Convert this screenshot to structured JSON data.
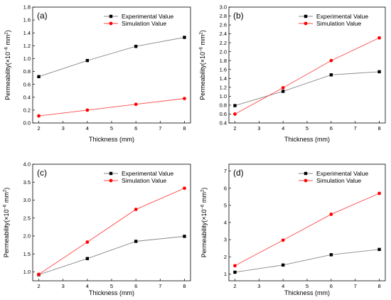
{
  "colors": {
    "experimental": "#000000",
    "simulation": "#ff0000",
    "experimental_line": "#888888",
    "simulation_line": "#ff4a4a"
  },
  "chart_data": [
    {
      "type": "line",
      "panel_label": "(a)",
      "xlabel": "Thickness (mm)",
      "ylabel": {
        "main": "Permeability(×10",
        "exp": "−6",
        "unit": " mm",
        "unit_exp": "2",
        "close": ")"
      },
      "xlim": [
        1.75,
        8.25
      ],
      "ylim": [
        0.0,
        1.8
      ],
      "xticks": [
        "2",
        "3",
        "4",
        "5",
        "6",
        "7",
        "8"
      ],
      "yticks": [
        "0.0",
        "0.2",
        "0.4",
        "0.6",
        "0.8",
        "1.0",
        "1.2",
        "1.4",
        "1.6",
        "1.8"
      ],
      "x": [
        2,
        4,
        6,
        8
      ],
      "series": [
        {
          "name": "Experimental Value",
          "values": [
            0.72,
            0.97,
            1.19,
            1.33
          ]
        },
        {
          "name": "Simulation Value",
          "values": [
            0.11,
            0.2,
            0.29,
            0.38
          ]
        }
      ]
    },
    {
      "type": "line",
      "panel_label": "(b)",
      "xlabel": "Thickness (mm)",
      "ylabel": {
        "main": "Permeability(×10",
        "exp": "−6",
        "unit": " mm",
        "unit_exp": "2",
        "close": ")"
      },
      "xlim": [
        1.75,
        8.25
      ],
      "ylim": [
        0.4,
        3.0
      ],
      "xticks": [
        "2",
        "3",
        "4",
        "5",
        "6",
        "7",
        "8"
      ],
      "yticks": [
        "0.4",
        "0.6",
        "0.8",
        "1.0",
        "1.2",
        "1.4",
        "1.6",
        "1.8",
        "2.0",
        "2.2",
        "2.4",
        "2.6",
        "2.8",
        "3.0"
      ],
      "x": [
        2,
        4,
        6,
        8
      ],
      "series": [
        {
          "name": "Experimental Value",
          "values": [
            0.79,
            1.11,
            1.48,
            1.55
          ]
        },
        {
          "name": "Simulation Value",
          "values": [
            0.6,
            1.19,
            1.8,
            2.31
          ]
        }
      ]
    },
    {
      "type": "line",
      "panel_label": "(c)",
      "xlabel": "Thickness (mm)",
      "ylabel": {
        "main": "Permeability(×10",
        "exp": "−6",
        "unit": " mm",
        "unit_exp": "2",
        "close": ")"
      },
      "xlim": [
        1.75,
        8.25
      ],
      "ylim": [
        0.75,
        4.0
      ],
      "xticks": [
        "2",
        "3",
        "4",
        "5",
        "6",
        "7",
        "8"
      ],
      "yticks": [
        "1.0",
        "1.5",
        "2.0",
        "2.5",
        "3.0",
        "3.5",
        "4.0"
      ],
      "x": [
        2,
        4,
        6,
        8
      ],
      "series": [
        {
          "name": "Experimental Value",
          "values": [
            0.92,
            1.37,
            1.85,
            1.99
          ]
        },
        {
          "name": "Simulation Value",
          "values": [
            0.93,
            1.83,
            2.74,
            3.33
          ]
        }
      ]
    },
    {
      "type": "line",
      "panel_label": "(d)",
      "xlabel": "Thickness (mm)",
      "ylabel": {
        "main": "Permeability(×10",
        "exp": "−6",
        "unit": " mm",
        "unit_exp": "2",
        "close": ")"
      },
      "xlim": [
        1.75,
        8.25
      ],
      "ylim": [
        0.6,
        7.4
      ],
      "xticks": [
        "2",
        "3",
        "4",
        "5",
        "6",
        "7",
        "8"
      ],
      "yticks": [
        "1",
        "2",
        "3",
        "4",
        "5",
        "6",
        "7"
      ],
      "x": [
        2,
        4,
        6,
        8
      ],
      "series": [
        {
          "name": "Experimental Value",
          "values": [
            1.1,
            1.52,
            2.12,
            2.43
          ]
        },
        {
          "name": "Simulation Value",
          "values": [
            1.48,
            2.97,
            4.48,
            5.7
          ]
        }
      ]
    }
  ]
}
